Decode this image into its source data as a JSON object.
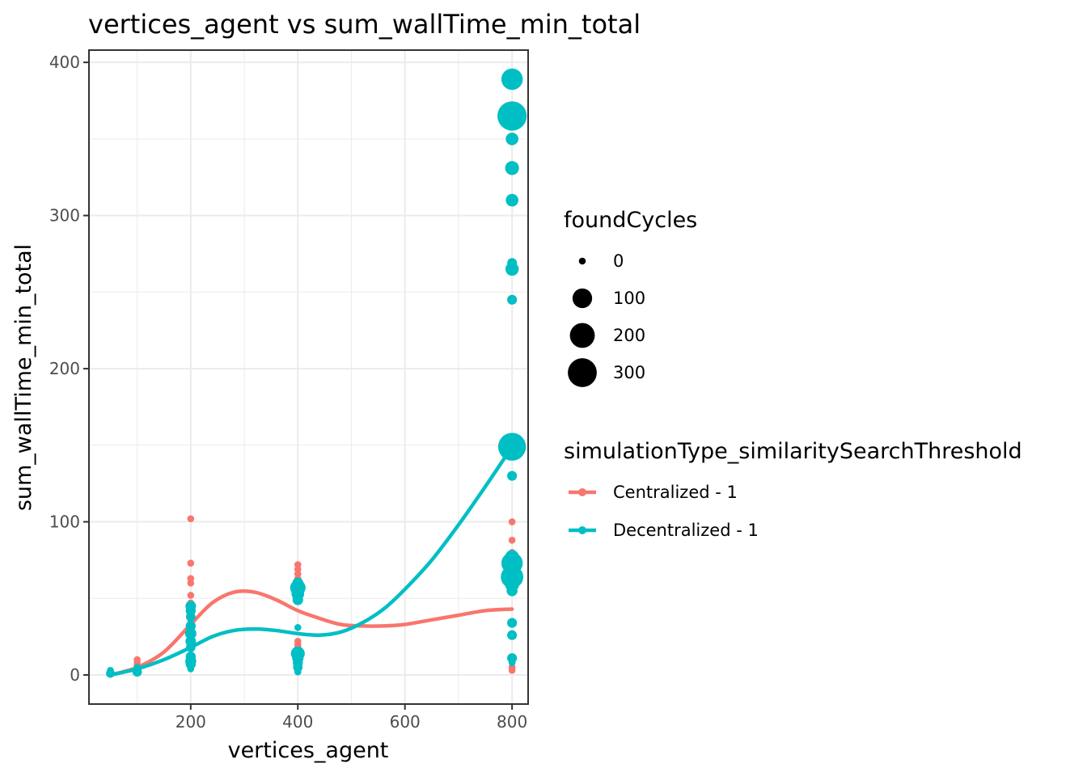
{
  "chart_data": {
    "type": "scatter",
    "title": "vertices_agent  vs  sum_wallTime_min_total",
    "xlabel": "vertices_agent",
    "ylabel": "sum_wallTime_min_total",
    "xlim": [
      10,
      830
    ],
    "ylim": [
      -19,
      408
    ],
    "x_ticks": [
      200,
      400,
      600,
      800
    ],
    "y_ticks": [
      0,
      100,
      200,
      300,
      400
    ],
    "x_minor": [
      100,
      300,
      500,
      700
    ],
    "y_minor": [
      50,
      150,
      250,
      350
    ],
    "grid": true,
    "legend_placement": "right",
    "size_legend": {
      "title": "foundCycles",
      "values": [
        0,
        100,
        200,
        300
      ],
      "labels": [
        "0",
        "100",
        "200",
        "300"
      ]
    },
    "color_legend": {
      "title": "simulationType_similaritySearchThreshold",
      "labels": [
        "Centralized - 1",
        "Decentralized - 1"
      ]
    },
    "series": [
      {
        "name": "Centralized - 1",
        "color": "#F8766D",
        "points": [
          {
            "x": 50,
            "y": 1,
            "size": 0
          },
          {
            "x": 50,
            "y": 2,
            "size": 0
          },
          {
            "x": 100,
            "y": 10,
            "size": 0
          },
          {
            "x": 100,
            "y": 8,
            "size": 0
          },
          {
            "x": 100,
            "y": 6,
            "size": 0
          },
          {
            "x": 200,
            "y": 102,
            "size": 0
          },
          {
            "x": 200,
            "y": 73,
            "size": 0
          },
          {
            "x": 200,
            "y": 63,
            "size": 0
          },
          {
            "x": 200,
            "y": 60,
            "size": 0
          },
          {
            "x": 200,
            "y": 52,
            "size": 0
          },
          {
            "x": 200,
            "y": 47,
            "size": 0
          },
          {
            "x": 200,
            "y": 40,
            "size": 0
          },
          {
            "x": 200,
            "y": 36,
            "size": 0
          },
          {
            "x": 200,
            "y": 31,
            "size": 0
          },
          {
            "x": 200,
            "y": 29,
            "size": 0
          },
          {
            "x": 400,
            "y": 72,
            "size": 0
          },
          {
            "x": 400,
            "y": 69,
            "size": 0
          },
          {
            "x": 400,
            "y": 66,
            "size": 0
          },
          {
            "x": 400,
            "y": 63,
            "size": 0
          },
          {
            "x": 400,
            "y": 60,
            "size": 0
          },
          {
            "x": 400,
            "y": 22,
            "size": 0
          },
          {
            "x": 400,
            "y": 20,
            "size": 0
          },
          {
            "x": 400,
            "y": 18,
            "size": 0
          },
          {
            "x": 400,
            "y": 16,
            "size": 0
          },
          {
            "x": 400,
            "y": 14,
            "size": 0
          },
          {
            "x": 800,
            "y": 100,
            "size": 0
          },
          {
            "x": 800,
            "y": 88,
            "size": 0
          },
          {
            "x": 800,
            "y": 80,
            "size": 0
          },
          {
            "x": 800,
            "y": 68,
            "size": 0
          },
          {
            "x": 800,
            "y": 66,
            "size": 0
          },
          {
            "x": 800,
            "y": 10,
            "size": 0
          },
          {
            "x": 800,
            "y": 5,
            "size": 0
          },
          {
            "x": 800,
            "y": 3,
            "size": 0
          }
        ],
        "smooth": [
          [
            50,
            0
          ],
          [
            100,
            5
          ],
          [
            150,
            15
          ],
          [
            200,
            33
          ],
          [
            240,
            47
          ],
          [
            280,
            54
          ],
          [
            320,
            54
          ],
          [
            360,
            49
          ],
          [
            400,
            42
          ],
          [
            440,
            37
          ],
          [
            480,
            33
          ],
          [
            520,
            32
          ],
          [
            560,
            32
          ],
          [
            600,
            33
          ],
          [
            650,
            36
          ],
          [
            700,
            39
          ],
          [
            750,
            42
          ],
          [
            800,
            43
          ]
        ]
      },
      {
        "name": "Decentralized - 1",
        "color": "#00BFC4",
        "points": [
          {
            "x": 50,
            "y": 3,
            "size": 0
          },
          {
            "x": 50,
            "y": 1,
            "size": 2
          },
          {
            "x": 50,
            "y": 2,
            "size": 0
          },
          {
            "x": 100,
            "y": 2,
            "size": 4
          },
          {
            "x": 100,
            "y": 5,
            "size": 0
          },
          {
            "x": 100,
            "y": 3,
            "size": 0
          },
          {
            "x": 200,
            "y": 45,
            "size": 8
          },
          {
            "x": 200,
            "y": 42,
            "size": 6
          },
          {
            "x": 200,
            "y": 38,
            "size": 4
          },
          {
            "x": 200,
            "y": 32,
            "size": 6
          },
          {
            "x": 200,
            "y": 27,
            "size": 12
          },
          {
            "x": 200,
            "y": 22,
            "size": 8
          },
          {
            "x": 200,
            "y": 18,
            "size": 4
          },
          {
            "x": 200,
            "y": 12,
            "size": 6
          },
          {
            "x": 200,
            "y": 9,
            "size": 10
          },
          {
            "x": 200,
            "y": 7,
            "size": 6
          },
          {
            "x": 200,
            "y": 4,
            "size": 0
          },
          {
            "x": 400,
            "y": 60,
            "size": 10
          },
          {
            "x": 400,
            "y": 57,
            "size": 45
          },
          {
            "x": 400,
            "y": 53,
            "size": 20
          },
          {
            "x": 400,
            "y": 49,
            "size": 8
          },
          {
            "x": 400,
            "y": 31,
            "size": 0
          },
          {
            "x": 400,
            "y": 14,
            "size": 30
          },
          {
            "x": 400,
            "y": 11,
            "size": 12
          },
          {
            "x": 400,
            "y": 8,
            "size": 6
          },
          {
            "x": 400,
            "y": 5,
            "size": 4
          },
          {
            "x": 400,
            "y": 2,
            "size": 0
          },
          {
            "x": 800,
            "y": 389,
            "size": 130
          },
          {
            "x": 800,
            "y": 365,
            "size": 310
          },
          {
            "x": 800,
            "y": 350,
            "size": 20
          },
          {
            "x": 800,
            "y": 331,
            "size": 30
          },
          {
            "x": 800,
            "y": 331,
            "size": 20
          },
          {
            "x": 800,
            "y": 310,
            "size": 20
          },
          {
            "x": 800,
            "y": 269,
            "size": 5
          },
          {
            "x": 800,
            "y": 265,
            "size": 25
          },
          {
            "x": 800,
            "y": 245,
            "size": 5
          },
          {
            "x": 800,
            "y": 149,
            "size": 270
          },
          {
            "x": 800,
            "y": 130,
            "size": 5
          },
          {
            "x": 800,
            "y": 77,
            "size": 30
          },
          {
            "x": 800,
            "y": 73,
            "size": 130
          },
          {
            "x": 800,
            "y": 69,
            "size": 40
          },
          {
            "x": 800,
            "y": 64,
            "size": 150
          },
          {
            "x": 800,
            "y": 59,
            "size": 30
          },
          {
            "x": 800,
            "y": 55,
            "size": 10
          },
          {
            "x": 800,
            "y": 34,
            "size": 5
          },
          {
            "x": 800,
            "y": 26,
            "size": 5
          },
          {
            "x": 800,
            "y": 11,
            "size": 5
          },
          {
            "x": 800,
            "y": 8,
            "size": 0
          }
        ],
        "smooth": [
          [
            50,
            0
          ],
          [
            100,
            4
          ],
          [
            150,
            10
          ],
          [
            200,
            18
          ],
          [
            240,
            25
          ],
          [
            280,
            29
          ],
          [
            320,
            30
          ],
          [
            360,
            29
          ],
          [
            400,
            27
          ],
          [
            440,
            26
          ],
          [
            480,
            28
          ],
          [
            520,
            34
          ],
          [
            560,
            43
          ],
          [
            600,
            56
          ],
          [
            650,
            75
          ],
          [
            700,
            98
          ],
          [
            750,
            123
          ],
          [
            800,
            149
          ]
        ]
      }
    ]
  }
}
